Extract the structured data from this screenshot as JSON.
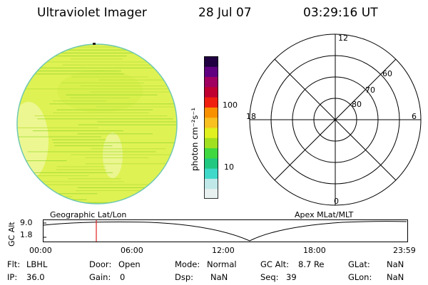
{
  "header": {
    "instrument": "Ultraviolet Imager",
    "date": "28 Jul 07",
    "time": "03:29:16 UT"
  },
  "colorbar": {
    "units_label": "photon cm⁻²s⁻¹",
    "ticks": [
      "100",
      "10"
    ],
    "colors": [
      "#e8f0f0",
      "#c0e8e8",
      "#40d8c8",
      "#20c880",
      "#40d840",
      "#a0e020",
      "#e0f020",
      "#f8c020",
      "#f89000",
      "#f02010",
      "#c00030",
      "#a00060",
      "#600080",
      "#200040"
    ]
  },
  "polar": {
    "mlt_labels": {
      "top": "12",
      "left": "18",
      "right": "6",
      "bottom": "0"
    },
    "lat_labels": [
      "60",
      "70",
      "80"
    ]
  },
  "map_labels": {
    "left": "Geographic Lat/Lon",
    "right": "Apex MLat/MLT"
  },
  "timeline": {
    "y_axis_label": "GC Alt",
    "y_ticks": [
      "9.0",
      "1.8"
    ],
    "x_ticks": [
      "00:00",
      "06:00",
      "12:00",
      "18:00",
      "23:59"
    ],
    "marker_color": "#e02020"
  },
  "info": {
    "flt": {
      "label": "Flt:",
      "value": "LBHL"
    },
    "ip": {
      "label": "IP:",
      "value": "36.0"
    },
    "door": {
      "label": "Door:",
      "value": "Open"
    },
    "gain": {
      "label": "Gain:",
      "value": "0"
    },
    "mode": {
      "label": "Mode:",
      "value": "Normal"
    },
    "dsp": {
      "label": "Dsp:",
      "value": "NaN"
    },
    "gc_alt": {
      "label": "GC Alt:",
      "value": "8.7 Re"
    },
    "seq": {
      "label": "Seq:",
      "value": "39"
    },
    "glat": {
      "label": "GLat:",
      "value": "NaN"
    },
    "glon": {
      "label": "GLon:",
      "value": "NaN"
    }
  }
}
